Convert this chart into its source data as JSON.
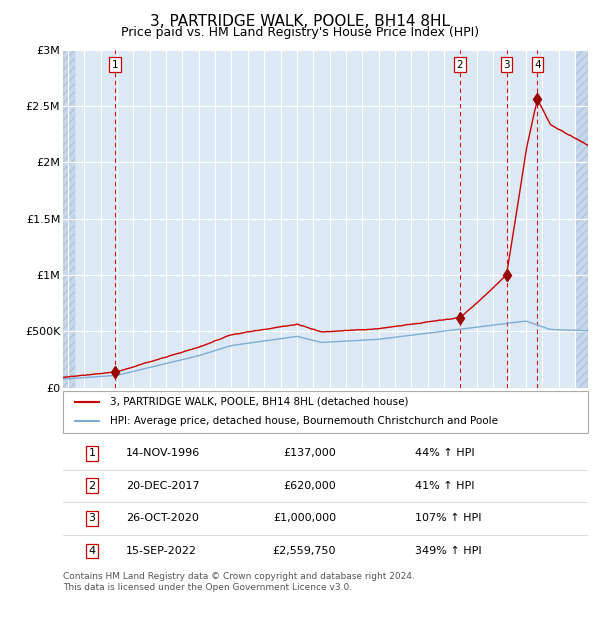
{
  "title": "3, PARTRIDGE WALK, POOLE, BH14 8HL",
  "subtitle": "Price paid vs. HM Land Registry's House Price Index (HPI)",
  "title_fontsize": 11,
  "subtitle_fontsize": 9,
  "plot_bg_color": "#dce9f5",
  "hatch_bg_color": "#c8d8ec",
  "grid_color": "#ffffff",
  "red_line_color": "#cc0000",
  "blue_line_color": "#7dadd4",
  "sale_marker_color": "#990000",
  "vline_color": "#cc0000",
  "ylim": [
    0,
    3000000
  ],
  "xlim_start": 1993.7,
  "xlim_end": 2025.8,
  "hatch_left_end": 1994.45,
  "hatch_right_start": 2025.05,
  "yticks": [
    0,
    500000,
    1000000,
    1500000,
    2000000,
    2500000,
    3000000
  ],
  "ytick_labels": [
    "£0",
    "£500K",
    "£1M",
    "£1.5M",
    "£2M",
    "£2.5M",
    "£3M"
  ],
  "xticks": [
    1994,
    1995,
    1996,
    1997,
    1998,
    1999,
    2000,
    2001,
    2002,
    2003,
    2004,
    2005,
    2006,
    2007,
    2008,
    2009,
    2010,
    2011,
    2012,
    2013,
    2014,
    2015,
    2016,
    2017,
    2018,
    2019,
    2020,
    2021,
    2022,
    2023,
    2024,
    2025
  ],
  "sales": [
    {
      "num": 1,
      "date": "14-NOV-1996",
      "year": 1996.87,
      "price": 137000,
      "pct": "44%",
      "dir": "↑"
    },
    {
      "num": 2,
      "date": "20-DEC-2017",
      "year": 2017.97,
      "price": 620000,
      "pct": "41%",
      "dir": "↑"
    },
    {
      "num": 3,
      "date": "26-OCT-2020",
      "year": 2020.82,
      "price": 1000000,
      "pct": "107%",
      "dir": "↑"
    },
    {
      "num": 4,
      "date": "15-SEP-2022",
      "year": 2022.71,
      "price": 2559750,
      "pct": "349%",
      "dir": "↑"
    }
  ],
  "legend_entries": [
    "3, PARTRIDGE WALK, POOLE, BH14 8HL (detached house)",
    "HPI: Average price, detached house, Bournemouth Christchurch and Poole"
  ],
  "footnote": "Contains HM Land Registry data © Crown copyright and database right 2024.\nThis data is licensed under the Open Government Licence v3.0.",
  "table_rows": [
    [
      "1",
      "14-NOV-1996",
      "£137,000",
      "44% ↑ HPI"
    ],
    [
      "2",
      "20-DEC-2017",
      "£620,000",
      "41% ↑ HPI"
    ],
    [
      "3",
      "26-OCT-2020",
      "£1,000,000",
      "107% ↑ HPI"
    ],
    [
      "4",
      "15-SEP-2022",
      "£2,559,750",
      "349% ↑ HPI"
    ]
  ]
}
